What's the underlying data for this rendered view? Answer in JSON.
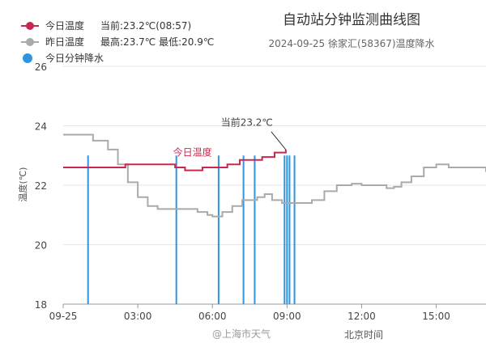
{
  "legend": [
    {
      "name": "今日温度",
      "extra": "当前:23.2℃(08:57)",
      "color": "#c8284f",
      "style": "line-dot"
    },
    {
      "name": "昨日温度",
      "extra": "最高:23.7℃ 最低:20.9℃",
      "color": "#aaaaaa",
      "style": "line-dot"
    },
    {
      "name": "今日分钟降水",
      "extra": "",
      "color": "#2f95e0",
      "style": "dot"
    }
  ],
  "title": "自动站分钟监测曲线图",
  "subtitle": "2024-09-25 徐家汇(58367)温度降水",
  "watermark": "@上海市天气",
  "chart_data": {
    "type": "line",
    "title": "自动站分钟监测曲线图",
    "subtitle": "2024-09-25 徐家汇(58367)温度降水",
    "xlabel": "北京时间",
    "ylabel": "温度(℃)",
    "ylim": [
      18,
      26
    ],
    "yticks": [
      "18",
      "20",
      "22",
      "24",
      "26"
    ],
    "xticks": [
      "09-25",
      "03:00",
      "06:00",
      "09:00",
      "12:00",
      "15:00"
    ],
    "xtick_hours": [
      0,
      3,
      6,
      9,
      12,
      15
    ],
    "xlim_hours": [
      0,
      17
    ],
    "grid": true,
    "legend_position": "top-left",
    "annotations": [
      {
        "text": "今日温度",
        "series": "今日温度"
      },
      {
        "text": "当前23.2℃",
        "series": "今日温度"
      }
    ],
    "series": [
      {
        "name": "今日温度",
        "color": "#c8284f",
        "x_hours": [
          0,
          2.0,
          2.5,
          3.5,
          4.5,
          4.9,
          5.6,
          6.6,
          7.1,
          8.0,
          8.5,
          8.95
        ],
        "values": [
          22.6,
          22.6,
          22.7,
          22.7,
          22.6,
          22.5,
          22.6,
          22.7,
          22.85,
          22.95,
          23.1,
          23.2
        ]
      },
      {
        "name": "昨日温度",
        "color": "#aaaaaa",
        "x_hours": [
          0,
          0.5,
          1.2,
          1.8,
          2.2,
          2.6,
          3.0,
          3.4,
          3.8,
          4.2,
          4.6,
          5.0,
          5.4,
          5.8,
          6.0,
          6.4,
          6.8,
          7.2,
          7.5,
          7.8,
          8.1,
          8.4,
          8.8,
          9.2,
          9.6,
          10.0,
          10.5,
          11.0,
          11.3,
          11.6,
          12.0,
          12.5,
          13.0,
          13.3,
          13.6,
          14.0,
          14.5,
          15.0,
          15.5,
          16.0,
          16.5,
          17.0
        ],
        "values": [
          23.7,
          23.7,
          23.5,
          23.2,
          22.7,
          22.1,
          21.6,
          21.3,
          21.2,
          21.2,
          21.2,
          21.2,
          21.1,
          21.0,
          20.95,
          21.1,
          21.3,
          21.5,
          21.5,
          21.6,
          21.7,
          21.5,
          21.4,
          21.4,
          21.4,
          21.5,
          21.8,
          22.0,
          22.0,
          22.05,
          22.0,
          22.0,
          21.9,
          21.95,
          22.1,
          22.3,
          22.6,
          22.7,
          22.6,
          22.6,
          22.6,
          22.45
        ]
      },
      {
        "name": "今日分钟降水",
        "color": "#2f95e0",
        "type": "bar",
        "x_hours": [
          1.0,
          4.55,
          6.25,
          7.25,
          7.7,
          8.9,
          9.0,
          9.1,
          9.3
        ],
        "values": [
          23.0,
          23.0,
          23.0,
          23.0,
          23.0,
          23.0,
          23.0,
          23.0,
          23.0
        ]
      }
    ]
  }
}
